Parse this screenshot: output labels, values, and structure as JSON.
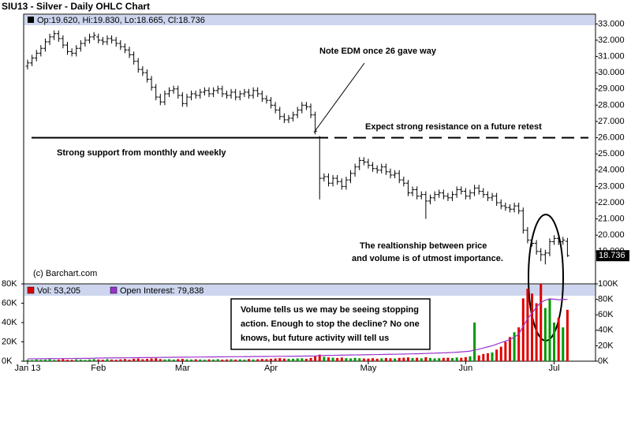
{
  "chart_data": {
    "type": "ohlc",
    "title": "SIU13 - Silver - Daily OHLC Chart",
    "header": "Op:19.620, Hi:19.830, Lo:18.665, Cl:18.736",
    "source": "(c) Barchart.com",
    "color": "#000000",
    "categories": [
      "Jan 13",
      null,
      null,
      null,
      null,
      null,
      null,
      null,
      null,
      null,
      null,
      null,
      null,
      null,
      null,
      null,
      "Feb",
      null,
      null,
      null,
      null,
      null,
      null,
      null,
      null,
      null,
      null,
      null,
      null,
      null,
      null,
      null,
      null,
      null,
      null,
      "Mar",
      null,
      null,
      null,
      null,
      null,
      null,
      null,
      null,
      null,
      null,
      null,
      null,
      null,
      null,
      null,
      null,
      null,
      null,
      null,
      "Apr",
      null,
      null,
      null,
      null,
      null,
      null,
      null,
      null,
      null,
      null,
      null,
      null,
      null,
      null,
      null,
      null,
      null,
      null,
      null,
      null,
      null,
      "May",
      null,
      null,
      null,
      null,
      null,
      null,
      null,
      null,
      null,
      null,
      null,
      null,
      null,
      null,
      null,
      null,
      null,
      null,
      null,
      null,
      null,
      "Jun",
      null,
      null,
      null,
      null,
      null,
      null,
      null,
      null,
      null,
      null,
      null,
      null,
      null,
      null,
      null,
      null,
      null,
      null,
      null,
      "Jul",
      null,
      null,
      null
    ],
    "open": [
      30.4,
      30.6,
      30.9,
      31.2,
      31.5,
      31.9,
      32.2,
      32.4,
      32.1,
      31.7,
      31.3,
      31.2,
      31.5,
      31.8,
      32.0,
      32.2,
      32.2,
      32.0,
      31.9,
      32.1,
      32.0,
      31.8,
      31.6,
      31.4,
      31.1,
      30.7,
      30.2,
      30.0,
      29.6,
      29.1,
      28.5,
      28.2,
      28.7,
      28.9,
      29.0,
      28.6,
      28.1,
      28.5,
      28.7,
      28.6,
      28.8,
      28.9,
      28.7,
      28.9,
      29.0,
      28.7,
      28.6,
      28.8,
      28.5,
      28.7,
      28.8,
      28.6,
      28.9,
      28.7,
      28.4,
      28.3,
      28.0,
      27.7,
      27.3,
      27.1,
      27.2,
      27.4,
      27.7,
      28.0,
      27.9,
      27.4,
      26.0,
      23.5,
      23.6,
      23.2,
      23.5,
      23.3,
      23.0,
      23.4,
      23.8,
      24.2,
      24.6,
      24.5,
      24.3,
      24.1,
      24.0,
      24.2,
      23.9,
      23.7,
      23.8,
      23.4,
      23.2,
      22.6,
      22.8,
      22.4,
      22.5,
      22.1,
      22.3,
      22.5,
      22.6,
      22.4,
      22.3,
      22.5,
      22.8,
      22.7,
      22.4,
      22.6,
      22.9,
      22.7,
      22.5,
      22.3,
      22.4,
      22.0,
      21.8,
      21.7,
      21.6,
      21.8,
      21.5,
      20.3,
      19.7,
      19.5,
      19.0,
      18.8,
      18.9,
      19.6,
      19.8,
      19.6,
      19.62
    ],
    "high": [
      30.8,
      31.1,
      31.4,
      31.7,
      32.1,
      32.4,
      32.6,
      32.6,
      32.3,
      31.9,
      31.5,
      31.7,
      32.0,
      32.2,
      32.4,
      32.5,
      32.4,
      32.2,
      32.3,
      32.3,
      32.2,
      32.0,
      31.8,
      31.6,
      31.3,
      30.9,
      30.4,
      30.2,
      29.8,
      29.3,
      28.7,
      28.9,
      29.1,
      29.2,
      29.2,
      28.8,
      28.7,
      28.9,
      28.9,
      29.0,
      29.1,
      29.1,
      29.1,
      29.2,
      29.2,
      28.9,
      29.0,
      29.0,
      28.9,
      29.0,
      29.0,
      29.1,
      29.1,
      28.9,
      28.6,
      28.5,
      28.2,
      27.9,
      27.5,
      27.4,
      27.6,
      27.9,
      28.2,
      28.2,
      28.1,
      27.6,
      26.1,
      23.8,
      23.8,
      23.7,
      23.7,
      23.5,
      23.6,
      24.0,
      24.4,
      24.8,
      24.8,
      24.7,
      24.5,
      24.3,
      24.4,
      24.4,
      24.1,
      24.0,
      24.0,
      23.6,
      23.4,
      23.0,
      23.0,
      22.7,
      22.7,
      22.5,
      22.7,
      22.8,
      22.8,
      22.6,
      22.7,
      23.0,
      23.0,
      22.9,
      22.8,
      23.1,
      23.1,
      22.9,
      22.7,
      22.6,
      22.6,
      22.2,
      22.0,
      21.9,
      22.0,
      22.0,
      21.7,
      20.5,
      19.9,
      19.7,
      19.2,
      19.1,
      19.8,
      20.0,
      20.0,
      19.9,
      19.83
    ],
    "low": [
      30.2,
      30.4,
      30.7,
      31.0,
      31.3,
      31.7,
      32.0,
      31.9,
      31.5,
      31.1,
      31.0,
      31.0,
      31.3,
      31.6,
      31.8,
      32.0,
      31.8,
      31.7,
      31.7,
      31.8,
      31.6,
      31.4,
      31.2,
      30.9,
      30.5,
      30.0,
      29.8,
      29.4,
      28.9,
      28.3,
      28.0,
      28.0,
      28.5,
      28.7,
      28.4,
      27.9,
      27.9,
      28.3,
      28.4,
      28.4,
      28.6,
      28.5,
      28.5,
      28.7,
      28.5,
      28.4,
      28.4,
      28.3,
      28.3,
      28.5,
      28.4,
      28.4,
      28.5,
      28.2,
      28.1,
      27.8,
      27.5,
      27.1,
      26.9,
      26.9,
      27.0,
      27.2,
      27.5,
      27.7,
      27.2,
      26.2,
      22.2,
      23.3,
      23.0,
      23.0,
      23.1,
      22.8,
      22.8,
      23.2,
      23.6,
      24.0,
      24.3,
      24.1,
      23.9,
      23.8,
      23.8,
      23.7,
      23.5,
      23.5,
      23.2,
      23.0,
      22.4,
      22.4,
      22.2,
      22.2,
      21.0,
      21.9,
      22.1,
      22.3,
      22.2,
      22.1,
      22.1,
      22.3,
      22.5,
      22.2,
      22.2,
      22.4,
      22.5,
      22.3,
      22.1,
      22.1,
      21.8,
      21.6,
      21.5,
      21.4,
      21.4,
      21.3,
      20.1,
      19.5,
      19.3,
      18.8,
      18.4,
      18.2,
      18.7,
      19.4,
      19.4,
      19.4,
      18.665
    ],
    "close": [
      30.6,
      30.9,
      31.2,
      31.5,
      31.9,
      32.2,
      32.4,
      32.1,
      31.7,
      31.3,
      31.2,
      31.5,
      31.8,
      32.0,
      32.2,
      32.3,
      32.0,
      31.9,
      32.1,
      32.0,
      31.8,
      31.6,
      31.4,
      31.1,
      30.7,
      30.2,
      30.0,
      29.6,
      29.1,
      28.5,
      28.2,
      28.7,
      28.9,
      29.0,
      28.6,
      28.1,
      28.5,
      28.7,
      28.6,
      28.8,
      28.9,
      28.7,
      28.9,
      29.0,
      28.7,
      28.6,
      28.8,
      28.5,
      28.7,
      28.8,
      28.6,
      28.9,
      28.7,
      28.4,
      28.3,
      28.0,
      27.7,
      27.3,
      27.1,
      27.2,
      27.4,
      27.7,
      28.0,
      27.9,
      27.4,
      26.4,
      23.5,
      23.6,
      23.2,
      23.5,
      23.3,
      23.0,
      23.4,
      23.8,
      24.2,
      24.6,
      24.5,
      24.3,
      24.1,
      24.0,
      24.2,
      23.9,
      23.7,
      23.8,
      23.4,
      23.2,
      22.6,
      22.8,
      22.4,
      22.5,
      22.1,
      22.3,
      22.5,
      22.6,
      22.4,
      22.3,
      22.5,
      22.8,
      22.7,
      22.4,
      22.6,
      22.9,
      22.7,
      22.5,
      22.3,
      22.4,
      22.0,
      21.8,
      21.7,
      21.6,
      21.8,
      21.5,
      20.3,
      19.7,
      19.5,
      19.0,
      18.8,
      18.9,
      19.6,
      19.8,
      19.6,
      19.7,
      18.736
    ],
    "ylim": [
      17,
      33.6
    ],
    "yticks": [
      {
        "value": 19,
        "label": "19.000"
      },
      {
        "value": 20,
        "label": "20.000"
      },
      {
        "value": 21,
        "label": "21.000"
      },
      {
        "value": 22,
        "label": "22.000"
      },
      {
        "value": 23,
        "label": "23.000"
      },
      {
        "value": 24,
        "label": "24.000"
      },
      {
        "value": 25,
        "label": "25.000"
      },
      {
        "value": 26,
        "label": "26.000"
      },
      {
        "value": 27,
        "label": "27.000"
      },
      {
        "value": 28,
        "label": "28.000"
      },
      {
        "value": 29,
        "label": "29.000"
      },
      {
        "value": 30,
        "label": "30.000"
      },
      {
        "value": 31,
        "label": "31.000"
      },
      {
        "value": 32,
        "label": "32.000"
      },
      {
        "value": 33,
        "label": "33.000"
      }
    ],
    "grid": false,
    "support_level": 26,
    "annotations": [
      "Note EDM once 26 gave way",
      "Expect strong resistance on a future retest",
      "Strong support from monthly and weekly",
      "The realtionship between price",
      "and volume is of utmost importance."
    ],
    "volume_note": [
      "Volume tells us we may be seeing stopping",
      "action.  Enough to stop the decline?  No one",
      "knows, but future activity will tell us"
    ],
    "series": [
      {
        "name": "Vol: 53,205",
        "color": "#e00000",
        "up_color": "#009900",
        "values": [
          1500,
          1200,
          1800,
          1400,
          1600,
          2000,
          1300,
          1700,
          2200,
          1500,
          1400,
          1900,
          1600,
          1300,
          1800,
          2100,
          1800,
          1500,
          2100,
          1700,
          1400,
          1900,
          2300,
          1600,
          2500,
          2800,
          2000,
          2400,
          2900,
          3100,
          2200,
          1800,
          2000,
          1700,
          2100,
          2400,
          1900,
          1700,
          2000,
          1800,
          1500,
          1900,
          1700,
          2100,
          1600,
          1800,
          2000,
          1700,
          1900,
          1600,
          2200,
          1800,
          2000,
          2300,
          2100,
          2500,
          2800,
          3200,
          2700,
          2400,
          2600,
          2900,
          3000,
          2500,
          3300,
          5200,
          6800,
          4500,
          3900,
          3600,
          3300,
          3800,
          3100,
          2900,
          3400,
          3000,
          2800,
          2700,
          3100,
          2600,
          2900,
          3300,
          3000,
          2800,
          3400,
          3600,
          3900,
          3200,
          3500,
          3000,
          4100,
          3300,
          2900,
          3100,
          3400,
          3600,
          3200,
          3800,
          3500,
          4200,
          5000,
          40000,
          6000,
          7500,
          8200,
          9000,
          12000,
          15000,
          20000,
          25000,
          30000,
          35000,
          65000,
          75000,
          70000,
          60000,
          80000,
          55000,
          65000,
          40000,
          45000,
          35000,
          53205
        ]
      },
      {
        "name": "Open Interest: 79,838",
        "color": "#9933cc",
        "axis": "y2",
        "values": [
          3000,
          3100,
          3100,
          3200,
          3200,
          3300,
          3300,
          3400,
          3400,
          3500,
          3500,
          3600,
          3600,
          3700,
          3700,
          3800,
          4100,
          4100,
          4200,
          4200,
          4300,
          4300,
          4400,
          4400,
          4500,
          4600,
          4600,
          4700,
          4800,
          4800,
          4900,
          5000,
          5000,
          5100,
          5100,
          5200,
          5200,
          5300,
          5300,
          5400,
          5400,
          5500,
          5500,
          5600,
          5600,
          5700,
          5700,
          5800,
          5800,
          5900,
          5900,
          6000,
          6000,
          6100,
          6100,
          6200,
          6200,
          6300,
          6300,
          6400,
          6400,
          6500,
          6500,
          6600,
          6600,
          6800,
          7200,
          7400,
          7500,
          7600,
          7700,
          7800,
          7900,
          8000,
          8100,
          8200,
          8300,
          8400,
          8500,
          8600,
          8700,
          8800,
          8900,
          9000,
          9100,
          9200,
          9400,
          9500,
          9600,
          9800,
          10000,
          10200,
          10400,
          10600,
          10800,
          11000,
          11300,
          11600,
          12000,
          12500,
          13000,
          14500,
          15500,
          17000,
          18500,
          20000,
          22000,
          24000,
          26000,
          28000,
          31000,
          35000,
          45000,
          55000,
          62000,
          70000,
          76000,
          79000,
          80500,
          80200,
          79500,
          80000,
          79838
        ]
      }
    ],
    "vol_ylim": [
      0,
      80000
    ],
    "vol_yticks": [
      {
        "value": 0,
        "label": "0K"
      },
      {
        "value": 20000,
        "label": "20K"
      },
      {
        "value": 40000,
        "label": "40K"
      },
      {
        "value": 60000,
        "label": "60K"
      },
      {
        "value": 80000,
        "label": "80K"
      }
    ],
    "y2lim": [
      0,
      100000
    ],
    "y2ticks": [
      {
        "value": 0,
        "label": "0K"
      },
      {
        "value": 20000,
        "label": "20K"
      },
      {
        "value": 40000,
        "label": "40K"
      },
      {
        "value": 60000,
        "label": "60K"
      },
      {
        "value": 80000,
        "label": "80K"
      },
      {
        "value": 100000,
        "label": "100K"
      }
    ]
  }
}
